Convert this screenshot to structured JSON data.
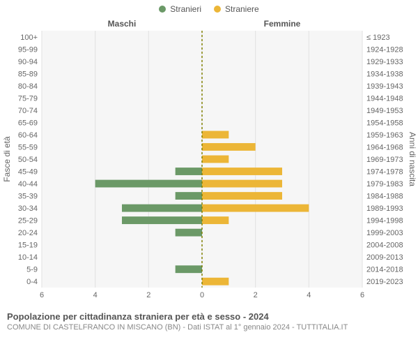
{
  "legend": {
    "male": {
      "label": "Stranieri",
      "color": "#6b9967"
    },
    "female": {
      "label": "Straniere",
      "color": "#ecb637"
    }
  },
  "header": {
    "male_panel": "Maschi",
    "female_panel": "Femmine",
    "y_left_title": "Fasce di età",
    "y_right_title": "Anni di nascita"
  },
  "chart": {
    "type": "population-pyramid",
    "background_color": "#f6f6f6",
    "grid_color": "#e2e2e2",
    "center_line_color": "#808000",
    "xmax": 6,
    "xtick_step": 2,
    "bar_height_ratio": 0.62,
    "age_labels": [
      "0-4",
      "5-9",
      "10-14",
      "15-19",
      "20-24",
      "25-29",
      "30-34",
      "35-39",
      "40-44",
      "45-49",
      "50-54",
      "55-59",
      "60-64",
      "65-69",
      "70-74",
      "75-79",
      "80-84",
      "85-89",
      "90-94",
      "95-99",
      "100+"
    ],
    "year_labels": [
      "2019-2023",
      "2014-2018",
      "2009-2013",
      "2004-2008",
      "1999-2003",
      "1994-1998",
      "1989-1993",
      "1984-1988",
      "1979-1983",
      "1974-1978",
      "1969-1973",
      "1964-1968",
      "1959-1963",
      "1954-1958",
      "1949-1953",
      "1944-1948",
      "1939-1943",
      "1934-1938",
      "1929-1933",
      "1924-1928",
      "≤ 1923"
    ],
    "male": [
      0,
      1,
      0,
      0,
      1,
      3,
      3,
      1,
      4,
      1,
      0,
      0,
      0,
      0,
      0,
      0,
      0,
      0,
      0,
      0,
      0
    ],
    "female": [
      1,
      0,
      0,
      0,
      0,
      1,
      4,
      3,
      3,
      3,
      1,
      2,
      1,
      0,
      0,
      0,
      0,
      0,
      0,
      0,
      0
    ],
    "male_color": "#6b9967",
    "female_color": "#ecb637",
    "axis_font_size": 11,
    "title_font_size": 12
  },
  "footer": {
    "title": "Popolazione per cittadinanza straniera per età e sesso - 2024",
    "source": "COMUNE DI CASTELFRANCO IN MISCANO (BN) - Dati ISTAT al 1° gennaio 2024 - TUTTITALIA.IT"
  }
}
